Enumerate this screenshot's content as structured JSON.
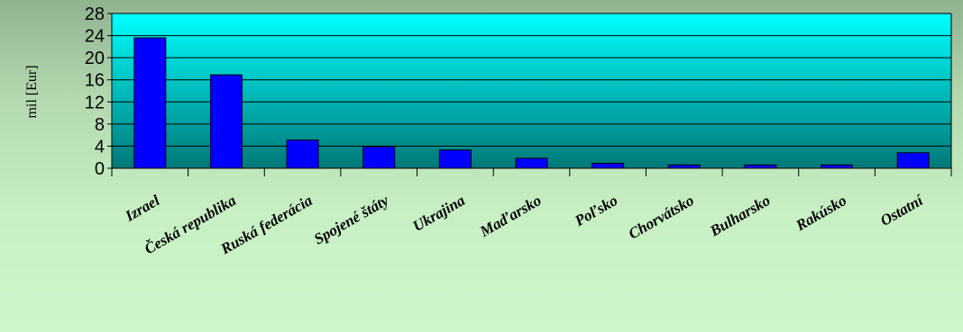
{
  "chart_data": {
    "type": "bar",
    "ylabel": "mil [Eur]",
    "ylim": [
      0,
      28
    ],
    "yticks": [
      0,
      4,
      8,
      12,
      16,
      20,
      24,
      28
    ],
    "grid": true,
    "categories": [
      "Izrael",
      "Česká republika",
      "Ruská federácia",
      "Spojené štáty",
      "Ukrajina",
      "Maďarsko",
      "Poľsko",
      "Chorvátsko",
      "Bulharsko",
      "Rakúsko",
      "Ostatní"
    ],
    "values": [
      23.6,
      16.9,
      5.1,
      3.9,
      3.3,
      1.8,
      0.9,
      0.6,
      0.6,
      0.6,
      2.8
    ],
    "bar_color": "#0000ff",
    "plot_gradient_top": "#00ffff",
    "plot_gradient_bottom": "#007878"
  }
}
